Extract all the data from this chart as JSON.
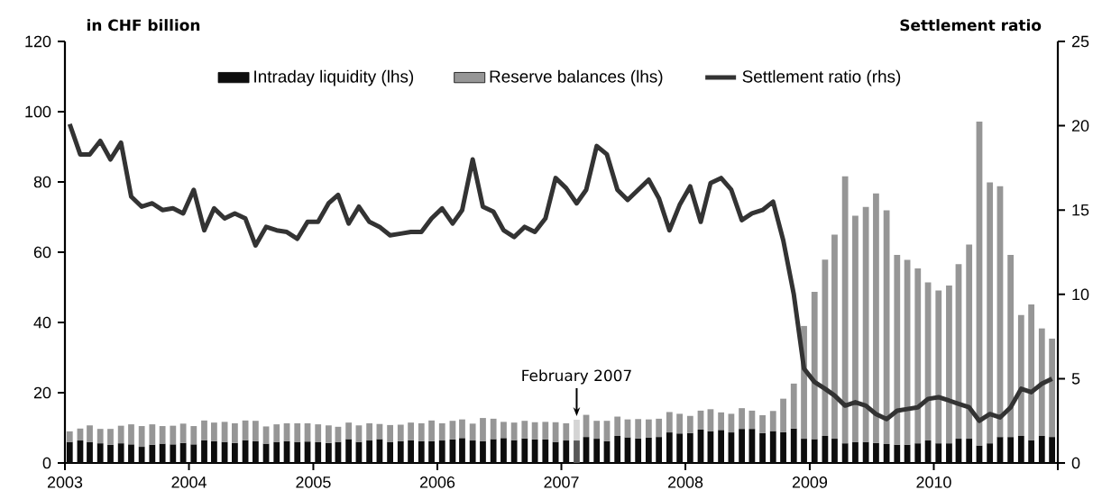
{
  "chart_data": {
    "type": "bar",
    "stacked": true,
    "ylabel": "in CHF billion",
    "y2label": "Settlement ratio",
    "x": [
      "2003-01-15",
      "2003-02-15",
      "2003-03-15",
      "2003-04-15",
      "2003-05-15",
      "2003-06-15",
      "2003-07-15",
      "2003-08-15",
      "2003-09-15",
      "2003-10-15",
      "2003-11-15",
      "2003-12-15",
      "2004-01-15",
      "2004-02-15",
      "2004-03-15",
      "2004-04-15",
      "2004-05-15",
      "2004-06-15",
      "2004-07-15",
      "2004-08-15",
      "2004-09-15",
      "2004-10-15",
      "2004-11-15",
      "2004-12-15",
      "2005-01-15",
      "2005-02-15",
      "2005-03-15",
      "2005-04-15",
      "2005-05-15",
      "2005-06-15",
      "2005-07-15",
      "2005-08-15",
      "2005-09-15",
      "2005-10-15",
      "2005-11-15",
      "2005-12-15",
      "2006-01-15",
      "2006-02-15",
      "2006-03-15",
      "2006-04-15",
      "2006-05-15",
      "2006-06-15",
      "2006-07-15",
      "2006-08-15",
      "2006-09-15",
      "2006-10-15",
      "2006-11-15",
      "2006-12-15",
      "2007-01-15",
      "2007-02-15",
      "2007-03-15",
      "2007-04-15",
      "2007-05-15",
      "2007-06-15",
      "2007-07-15",
      "2007-08-15",
      "2007-09-15",
      "2007-10-15",
      "2007-11-15",
      "2007-12-15",
      "2008-01-15",
      "2008-02-15",
      "2008-03-15",
      "2008-04-15",
      "2008-05-15",
      "2008-06-15",
      "2008-07-15",
      "2008-08-15",
      "2008-09-15",
      "2008-10-15",
      "2008-11-15",
      "2008-12-15",
      "2009-01-15",
      "2009-02-15",
      "2009-03-15",
      "2009-04-15",
      "2009-05-15",
      "2009-06-15",
      "2009-07-15",
      "2009-08-15",
      "2009-09-15",
      "2009-10-15",
      "2009-11-15",
      "2009-12-15",
      "2010-01-15",
      "2010-02-15",
      "2010-03-15",
      "2010-04-15",
      "2010-05-15",
      "2010-06-15",
      "2010-07-15",
      "2010-08-15",
      "2010-09-15",
      "2010-10-15",
      "2010-11-15",
      "2010-12-15"
    ],
    "xlim": [
      "2003-01-01",
      "2011-01-01"
    ],
    "xticks": [
      "2003",
      "2004",
      "2005",
      "2006",
      "2007",
      "2008",
      "2009",
      "2010",
      {
        "value": "2011",
        "label": null
      }
    ],
    "ylim": [
      0,
      120
    ],
    "yticks": [
      0,
      20,
      40,
      60,
      80,
      100,
      120
    ],
    "y2lim": [
      0,
      25
    ],
    "y2ticks": [
      0,
      5,
      10,
      15,
      20,
      25
    ],
    "legend": "top",
    "grid": false,
    "annotations": [
      {
        "text": "February 2007",
        "x": "2007-02-15",
        "y": 12.3
      }
    ],
    "series": [
      {
        "name": "Intraday liquidity (lhs)",
        "color": "#0d0d0d",
        "values": [
          6.0,
          6.4,
          6.0,
          5.6,
          5.2,
          5.6,
          5.3,
          4.6,
          5.2,
          5.5,
          5.3,
          5.7,
          5.3,
          6.5,
          6.2,
          6.0,
          5.7,
          6.5,
          6.2,
          5.5,
          6.0,
          6.2,
          6.0,
          6.1,
          5.9,
          5.7,
          6.0,
          6.8,
          6.0,
          6.4,
          6.8,
          6.0,
          6.2,
          6.5,
          6.2,
          6.2,
          6.4,
          6.7,
          7.1,
          6.4,
          6.2,
          6.8,
          7.1,
          6.5,
          7.0,
          6.7,
          6.7,
          6.0,
          6.4,
          6.4,
          7.4,
          6.9,
          6.2,
          7.7,
          7.3,
          7.0,
          7.2,
          7.4,
          8.7,
          8.4,
          8.5,
          9.5,
          9.0,
          9.4,
          8.7,
          9.7,
          9.7,
          8.5,
          9.1,
          8.8,
          9.8,
          6.9,
          6.8,
          7.7,
          6.9,
          5.6,
          6.0,
          6.0,
          5.7,
          5.4,
          5.2,
          5.2,
          5.6,
          6.4,
          5.6,
          5.6,
          6.9,
          6.9,
          4.9,
          5.6,
          7.4,
          7.4,
          7.7,
          6.5,
          7.7,
          7.4
        ],
        "colors": [
          "#0d0d0d",
          "#0d0d0d",
          "#0d0d0d",
          "#0d0d0d",
          "#0d0d0d",
          "#0d0d0d",
          "#0d0d0d",
          "#0d0d0d",
          "#0d0d0d",
          "#0d0d0d",
          "#0d0d0d",
          "#0d0d0d",
          "#0d0d0d",
          "#0d0d0d",
          "#0d0d0d",
          "#0d0d0d",
          "#0d0d0d",
          "#0d0d0d",
          "#0d0d0d",
          "#0d0d0d",
          "#0d0d0d",
          "#0d0d0d",
          "#0d0d0d",
          "#0d0d0d",
          "#0d0d0d",
          "#0d0d0d",
          "#0d0d0d",
          "#0d0d0d",
          "#0d0d0d",
          "#0d0d0d",
          "#0d0d0d",
          "#0d0d0d",
          "#0d0d0d",
          "#0d0d0d",
          "#0d0d0d",
          "#0d0d0d",
          "#0d0d0d",
          "#0d0d0d",
          "#0d0d0d",
          "#0d0d0d",
          "#0d0d0d",
          "#0d0d0d",
          "#0d0d0d",
          "#0d0d0d",
          "#0d0d0d",
          "#0d0d0d",
          "#0d0d0d",
          "#0d0d0d",
          "#0d0d0d",
          "#595959",
          "#0d0d0d",
          "#0d0d0d",
          "#0d0d0d",
          "#0d0d0d",
          "#0d0d0d",
          "#0d0d0d",
          "#0d0d0d",
          "#0d0d0d",
          "#0d0d0d",
          "#0d0d0d",
          "#0d0d0d",
          "#0d0d0d",
          "#0d0d0d",
          "#0d0d0d",
          "#0d0d0d",
          "#0d0d0d",
          "#0d0d0d",
          "#0d0d0d",
          "#0d0d0d",
          "#0d0d0d",
          "#0d0d0d",
          "#0d0d0d",
          "#0d0d0d",
          "#0d0d0d",
          "#0d0d0d",
          "#0d0d0d",
          "#0d0d0d",
          "#0d0d0d",
          "#0d0d0d",
          "#0d0d0d",
          "#0d0d0d",
          "#0d0d0d",
          "#0d0d0d",
          "#0d0d0d",
          "#0d0d0d",
          "#0d0d0d",
          "#0d0d0d",
          "#0d0d0d",
          "#0d0d0d",
          "#0d0d0d",
          "#0d0d0d",
          "#0d0d0d",
          "#0d0d0d",
          "#0d0d0d",
          "#0d0d0d",
          "#0d0d0d"
        ]
      },
      {
        "name": "Reserve balances (lhs)",
        "color": "#969696",
        "values": [
          3.0,
          3.4,
          4.7,
          4.1,
          4.5,
          5.0,
          5.7,
          5.9,
          5.8,
          5.0,
          5.3,
          5.5,
          5.2,
          5.6,
          5.3,
          5.7,
          5.6,
          5.6,
          5.8,
          4.9,
          5.0,
          5.1,
          5.3,
          5.2,
          5.1,
          5.0,
          4.3,
          4.7,
          4.7,
          4.9,
          4.3,
          4.8,
          4.7,
          5.0,
          5.1,
          5.9,
          4.9,
          5.3,
          5.3,
          4.8,
          6.6,
          5.8,
          4.6,
          5.0,
          5.0,
          4.9,
          5.0,
          5.6,
          4.9,
          5.9,
          6.3,
          5.1,
          5.8,
          5.5,
          5.1,
          5.5,
          5.2,
          5.2,
          5.8,
          5.6,
          4.9,
          5.4,
          6.3,
          5.0,
          5.3,
          5.9,
          5.2,
          5.1,
          5.7,
          9.5,
          12.8,
          32.1,
          41.9,
          50.2,
          58.1,
          76.0,
          64.4,
          66.9,
          71.0,
          66.5,
          54.0,
          52.6,
          49.8,
          45.0,
          43.5,
          44.9,
          49.7,
          55.3,
          92.3,
          74.3,
          71.4,
          51.8,
          34.4,
          38.6,
          30.6,
          28.0
        ],
        "colors": [
          "#969696",
          "#969696",
          "#969696",
          "#969696",
          "#969696",
          "#969696",
          "#969696",
          "#969696",
          "#969696",
          "#969696",
          "#969696",
          "#969696",
          "#969696",
          "#969696",
          "#969696",
          "#969696",
          "#969696",
          "#969696",
          "#969696",
          "#969696",
          "#969696",
          "#969696",
          "#969696",
          "#969696",
          "#969696",
          "#969696",
          "#969696",
          "#969696",
          "#969696",
          "#969696",
          "#969696",
          "#969696",
          "#969696",
          "#969696",
          "#969696",
          "#969696",
          "#969696",
          "#969696",
          "#969696",
          "#969696",
          "#969696",
          "#969696",
          "#969696",
          "#969696",
          "#969696",
          "#969696",
          "#969696",
          "#969696",
          "#969696",
          "#d4d4d4",
          "#969696",
          "#969696",
          "#969696",
          "#969696",
          "#969696",
          "#969696",
          "#969696",
          "#969696",
          "#969696",
          "#969696",
          "#969696",
          "#969696",
          "#969696",
          "#969696",
          "#969696",
          "#969696",
          "#969696",
          "#969696",
          "#969696",
          "#969696",
          "#969696",
          "#969696",
          "#969696",
          "#969696",
          "#969696",
          "#969696",
          "#969696",
          "#969696",
          "#969696",
          "#969696",
          "#969696",
          "#969696",
          "#969696",
          "#969696",
          "#969696",
          "#969696",
          "#969696",
          "#969696",
          "#969696",
          "#969696",
          "#969696",
          "#969696",
          "#969696",
          "#969696",
          "#969696",
          "#969696"
        ]
      },
      {
        "name": "Settlement ratio (rhs)",
        "type": "line",
        "axis": "y2",
        "color": "#333333",
        "marker": "none",
        "line_style": "solid",
        "values": [
          20.1,
          18.3,
          18.3,
          19.1,
          18.0,
          19.0,
          15.8,
          15.2,
          15.4,
          15.0,
          15.1,
          14.8,
          16.2,
          13.8,
          15.1,
          14.5,
          14.8,
          14.5,
          12.9,
          14.0,
          13.8,
          13.7,
          13.3,
          14.3,
          14.3,
          15.4,
          15.9,
          14.2,
          15.2,
          14.3,
          14.0,
          13.5,
          13.6,
          13.7,
          13.7,
          14.5,
          15.1,
          14.2,
          15.0,
          18.0,
          15.2,
          14.9,
          13.8,
          13.4,
          14.0,
          13.7,
          14.5,
          16.9,
          16.3,
          15.4,
          16.2,
          18.8,
          18.3,
          16.2,
          15.6,
          16.2,
          16.8,
          15.7,
          13.8,
          15.3,
          16.4,
          14.3,
          16.6,
          16.9,
          16.2,
          14.4,
          14.8,
          15.0,
          15.5,
          13.2,
          10.0,
          5.6,
          4.8,
          4.4,
          4.0,
          3.4,
          3.6,
          3.4,
          2.9,
          2.6,
          3.1,
          3.2,
          3.3,
          3.8,
          3.9,
          3.7,
          3.5,
          3.3,
          2.5,
          2.9,
          2.7,
          3.3,
          4.4,
          4.2,
          4.7,
          5.0
        ]
      }
    ]
  }
}
